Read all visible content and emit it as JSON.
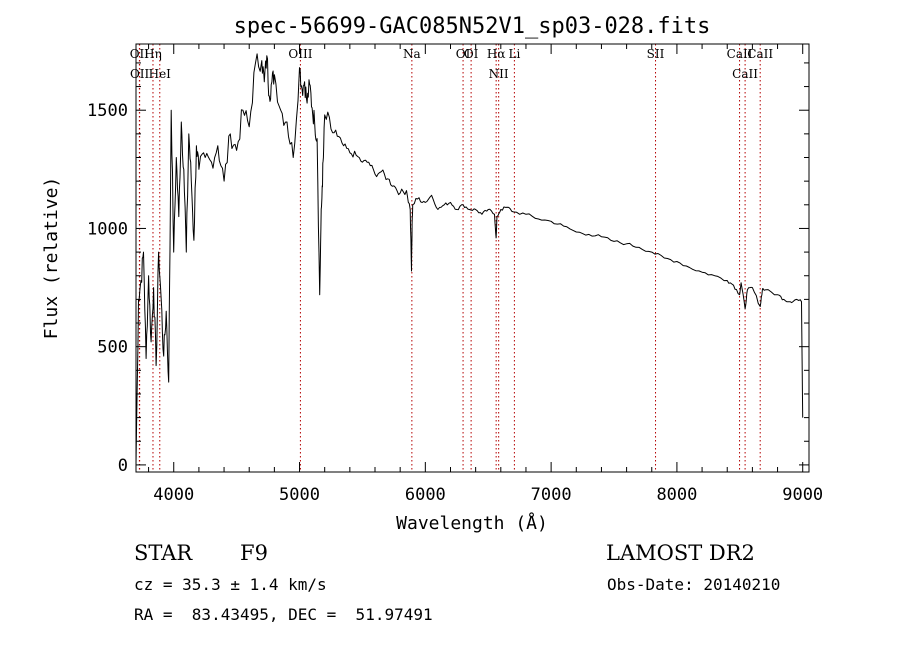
{
  "chart_data": {
    "type": "line",
    "title": "spec-56699-GAC085N52V1_sp03-028.fits",
    "xlabel": "Wavelength (Å)",
    "ylabel": "Flux (relative)",
    "xlim": [
      3700,
      9050
    ],
    "ylim": [
      -30,
      1780
    ],
    "xticks": [
      4000,
      5000,
      6000,
      7000,
      8000,
      9000
    ],
    "yticks": [
      0,
      500,
      1000,
      1500
    ],
    "grid": false,
    "series": [
      {
        "x": [
          3700,
          3720,
          3740,
          3760,
          3780,
          3800,
          3820,
          3840,
          3860,
          3880,
          3900,
          3920,
          3940,
          3960,
          3980,
          4000,
          4020,
          4040,
          4060,
          4080,
          4100,
          4120,
          4140,
          4160,
          4180,
          4200,
          4250,
          4300,
          4350,
          4400,
          4450,
          4500,
          4550,
          4600,
          4650,
          4700,
          4720,
          4740,
          4760,
          4780,
          4800,
          4850,
          4900,
          4950,
          5000,
          5020,
          5040,
          5060,
          5080,
          5100,
          5120,
          5140,
          5160,
          5170,
          5180,
          5190,
          5200,
          5250,
          5300,
          5350,
          5400,
          5450,
          5500,
          5550,
          5600,
          5650,
          5700,
          5750,
          5800,
          5850,
          5880,
          5890,
          5895,
          5900,
          5950,
          6000,
          6050,
          6100,
          6150,
          6200,
          6250,
          6300,
          6350,
          6400,
          6450,
          6500,
          6550,
          6563,
          6570,
          6600,
          6650,
          6700,
          6800,
          6900,
          7000,
          7100,
          7200,
          7300,
          7400,
          7500,
          7600,
          7700,
          7800,
          7900,
          8000,
          8100,
          8200,
          8300,
          8400,
          8450,
          8498,
          8510,
          8542,
          8560,
          8600,
          8662,
          8680,
          8700,
          8800,
          8850,
          8900,
          8950,
          8990,
          9000
        ],
        "y": [
          0,
          700,
          780,
          900,
          450,
          800,
          520,
          750,
          420,
          900,
          700,
          460,
          650,
          350,
          1500,
          900,
          1300,
          1050,
          1450,
          1250,
          900,
          1400,
          1200,
          950,
          1350,
          1250,
          1300,
          1280,
          1350,
          1200,
          1400,
          1330,
          1500,
          1430,
          1700,
          1710,
          1620,
          1730,
          1560,
          1620,
          1650,
          1500,
          1450,
          1300,
          1680,
          1590,
          1620,
          1530,
          1610,
          1510,
          1450,
          1380,
          720,
          1000,
          1180,
          1300,
          1480,
          1420,
          1390,
          1350,
          1320,
          1310,
          1280,
          1280,
          1230,
          1240,
          1210,
          1180,
          1150,
          1160,
          1080,
          820,
          1020,
          1100,
          1130,
          1110,
          1140,
          1080,
          1100,
          1110,
          1080,
          1100,
          1080,
          1080,
          1060,
          1080,
          1060,
          960,
          1050,
          1080,
          1090,
          1070,
          1060,
          1040,
          1030,
          1010,
          985,
          975,
          965,
          945,
          935,
          920,
          900,
          875,
          860,
          835,
          815,
          800,
          780,
          760,
          720,
          770,
          660,
          740,
          750,
          670,
          745,
          740,
          720,
          700,
          690,
          700,
          690,
          200
        ]
      }
    ],
    "annotations": [
      {
        "label": "Hη",
        "x": 3835
      },
      {
        "label": "OII",
        "x": 3727
      },
      {
        "label": "OII",
        "x": 3729
      },
      {
        "label": "HeI",
        "x": 3889
      },
      {
        "label": "OIII",
        "x": 5007
      },
      {
        "label": "Na",
        "x": 5893
      },
      {
        "label": "OI",
        "x": 6300
      },
      {
        "label": "OI",
        "x": 6364
      },
      {
        "label": "Hα",
        "x": 6563
      },
      {
        "label": "NII",
        "x": 6583
      },
      {
        "label": "Li",
        "x": 6708
      },
      {
        "label": "SII",
        "x": 7830
      },
      {
        "label": "CaII",
        "x": 8498
      },
      {
        "label": "CaII",
        "x": 8542
      },
      {
        "label": "CaII",
        "x": 8662
      }
    ]
  },
  "info": {
    "object_class": "STAR",
    "subclass": "F9",
    "survey": "LAMOST DR2",
    "cz": "cz = 35.3 ± 1.4 km/s",
    "obs_date": "Obs-Date: 20140210",
    "coords": "RA =  83.43495, DEC =  51.97491"
  }
}
